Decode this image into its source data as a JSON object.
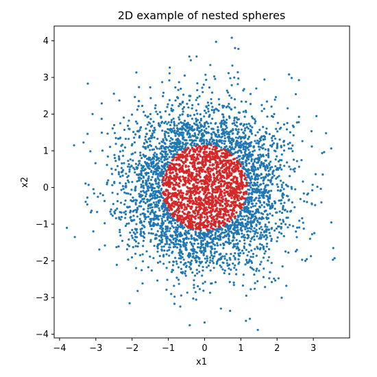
{
  "chart_data": {
    "type": "scatter",
    "title": "2D example of nested spheres",
    "xlabel": "x1",
    "ylabel": "x2",
    "xlim": [
      -4.15,
      4.0
    ],
    "ylim": [
      -4.1,
      4.4
    ],
    "x_ticks": [
      -4,
      -3,
      -2,
      -1,
      0,
      1,
      2,
      3
    ],
    "y_ticks": [
      -4,
      -3,
      -2,
      -1,
      0,
      1,
      2,
      3,
      4
    ],
    "x_tick_labels": [
      "−4",
      "−3",
      "−2",
      "−1",
      "0",
      "1",
      "2",
      "3"
    ],
    "y_tick_labels": [
      "−4",
      "−3",
      "−2",
      "−1",
      "0",
      "1",
      "2",
      "3",
      "4"
    ],
    "grid": false,
    "legend": "none",
    "series": [
      {
        "color": "#1f77b4",
        "distribution": "2D standard normal samples outside the unit disc (shell)",
        "count": 3000,
        "sample_points": [
          [
            -3.8,
            -1.1
          ],
          [
            -3.6,
            1.15
          ],
          [
            -3.58,
            -1.35
          ],
          [
            3.55,
            -1.65
          ],
          [
            3.35,
            1.48
          ],
          [
            0.0,
            -3.68
          ],
          [
            1.25,
            -3.58
          ],
          [
            0.75,
            4.08
          ],
          [
            -0.42,
            3.57
          ],
          [
            -0.22,
            3.57
          ],
          [
            -0.55,
            3.05
          ],
          [
            3.05,
            -0.48
          ],
          [
            -3.2,
            0.07
          ],
          [
            -2.75,
            -1.58
          ],
          [
            2.78,
            -2.0
          ],
          [
            0.45,
            -3.3
          ],
          [
            -0.25,
            -2.85
          ],
          [
            -2.35,
            2.37
          ],
          [
            2.55,
            1.77
          ],
          [
            -1.5,
            2.73
          ]
        ]
      },
      {
        "color": "#d62728",
        "distribution": "points inside the unit disc",
        "radius": 1.17,
        "count": 1500
      }
    ]
  }
}
